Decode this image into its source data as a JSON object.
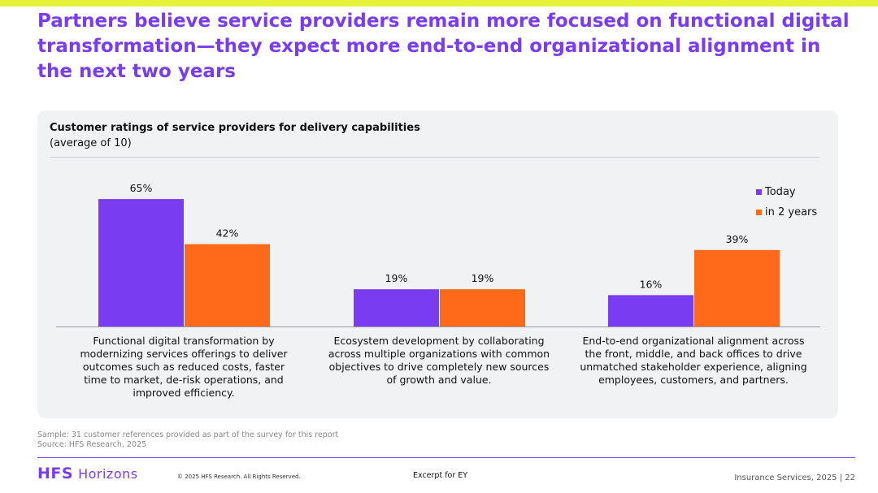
{
  "page": {
    "title": "Partners believe service providers remain more focused on functional digital transformation—they expect more end-to-end organizational alignment in the next two years"
  },
  "colors": {
    "accent_purple": "#7a3cf0",
    "accent_orange": "#ff6a1a",
    "top_bar": "#e6f23a"
  },
  "chart_data": {
    "type": "bar",
    "title": "Customer ratings of service providers for delivery capabilities",
    "subtitle": "(average of 10)",
    "categories": [
      "Functional digital transformation by modernizing services offerings to deliver outcomes such as reduced costs, faster time to market, de-risk operations, and improved efficiency.",
      "Ecosystem development by collaborating across multiple organizations with common objectives to drive completely new sources of growth and value.",
      "End-to-end organizational alignment across the front, middle, and back offices to drive unmatched stakeholder experience, aligning employees, customers, and partners."
    ],
    "series": [
      {
        "name": "Today",
        "values": [
          65,
          19,
          16
        ],
        "labels": [
          "65%",
          "19%",
          "16%"
        ]
      },
      {
        "name": "in 2 years",
        "values": [
          42,
          19,
          39
        ],
        "labels": [
          "42%",
          "19%",
          "39%"
        ]
      }
    ],
    "ylim": [
      0,
      70
    ],
    "xlabel": "",
    "ylabel": "",
    "legend": "top-right"
  },
  "notes": {
    "sample": "Sample: 31 customer references provided as part of the survey for this report",
    "source": "Source: HFS Research, 2025"
  },
  "footer": {
    "brand_hfs": "HFS",
    "brand_horizons": "Horizons",
    "copyright": "© 2025 HFS Research. All Rights Reserved.",
    "excerpt": "Excerpt for EY",
    "page_info": "Insurance Services, 2025 | 22"
  }
}
